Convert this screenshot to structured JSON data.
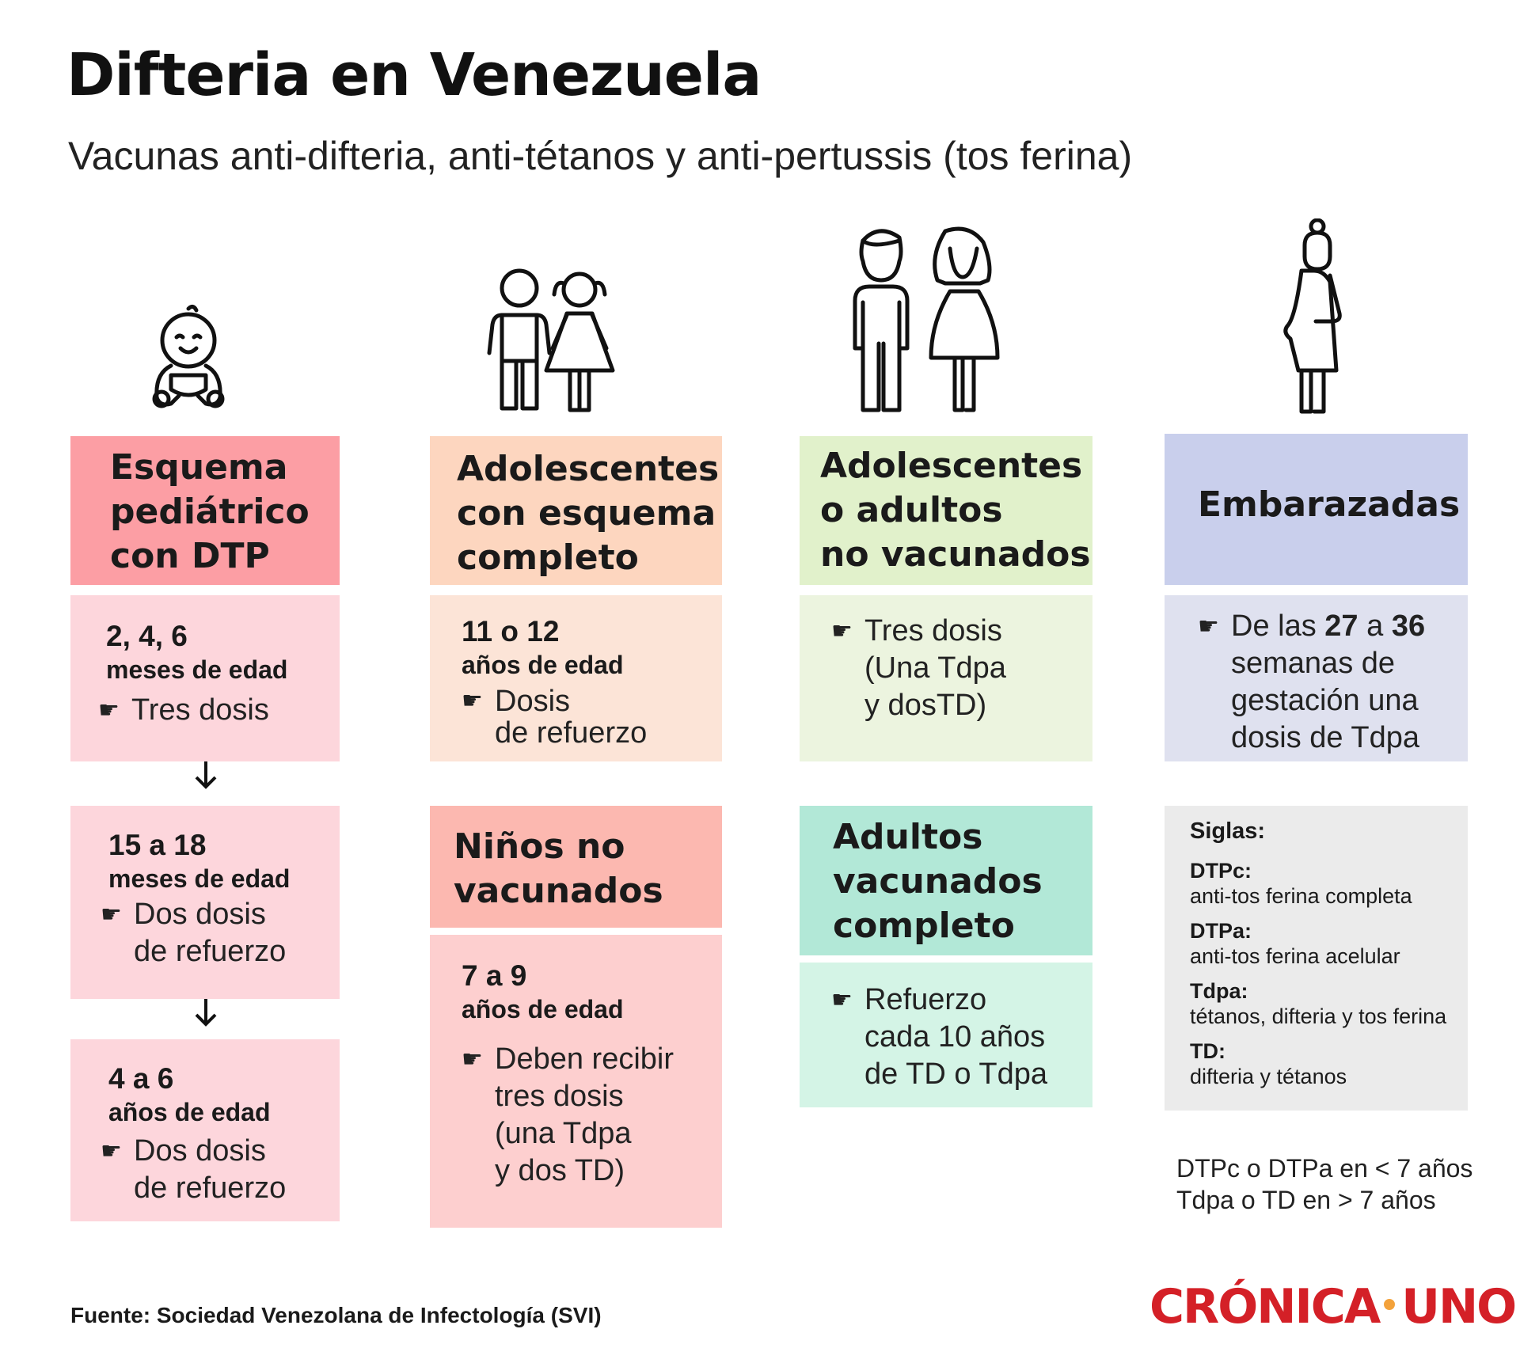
{
  "title": "Difteria en Venezuela",
  "subtitle": "Vacunas anti-difteria, anti-tétanos y anti-pertussis (tos ferina)",
  "icons": [
    "baby-icon",
    "children-icon",
    "adults-icon",
    "pregnant-woman-icon",
    "hand-pointer-icon",
    "arrow-down-icon"
  ],
  "colors": {
    "pediatric_header": "#fc9ea4",
    "pediatric_body": "#fdd6dc",
    "teen_header": "#fdd6bf",
    "teen_body": "#fce4d7",
    "unvax_adults_header": "#e1f1cb",
    "unvax_adults_body": "#ecf4df",
    "pregnant_header": "#c9cfec",
    "pregnant_body": "#dfe1ef",
    "unvax_children_header": "#fcb8b0",
    "unvax_children_body": "#fdcfcf",
    "vax_adults_header": "#b2e8d7",
    "vax_adults_body": "#d4f4e6",
    "siglas_bg": "#ebebeb",
    "brand_red": "#d42027",
    "brand_orange": "#f3a23b"
  },
  "col1": {
    "header": "Esquema\npediátrico\ncon DTP",
    "b1": {
      "num": "2, 4, 6",
      "unit": "meses de edad",
      "bullet": "Tres dosis"
    },
    "b2": {
      "num": "15 a 18",
      "unit": "meses de edad",
      "bullet": "Dos dosis\nde refuerzo"
    },
    "b3": {
      "num": "4 a 6",
      "unit": "años de edad",
      "bullet": "Dos dosis\nde refuerzo"
    }
  },
  "col2": {
    "header": "Adolescentes\ncon esquema\ncompleto",
    "b1": {
      "num": "11 o 12",
      "unit": "años de edad",
      "bullet": "Dosis\nde refuerzo"
    },
    "header2": "Niños no\nvacunados",
    "b2": {
      "num": "7 a 9",
      "unit": "años de edad",
      "bullet": "Deben recibir\ntres dosis\n(una Tdpa\ny dos TD)"
    }
  },
  "col3": {
    "header": "Adolescentes\no adultos\nno vacunados",
    "b1": {
      "bullet": "Tres dosis\n(Una Tdpa\ny dosTD)"
    },
    "header2": "Adultos\nvacunados\ncompleto",
    "b2": {
      "bullet": "Refuerzo\ncada 10 años\nde TD o Tdpa"
    }
  },
  "col4": {
    "header": "Embarazadas",
    "b1": {
      "pre": "De las ",
      "n1": "27",
      "mid": " a ",
      "n2": "36",
      "post": "\nsemanas de\ngestación una\ndosis de Tdpa"
    },
    "siglas": {
      "title": "Siglas:",
      "items": [
        {
          "k": "DTPc:",
          "v": "anti-tos ferina completa"
        },
        {
          "k": "DTPa:",
          "v": "anti-tos ferina acelular"
        },
        {
          "k": "Tdpa:",
          "v": "tétanos, difteria y tos ferina"
        },
        {
          "k": "TD:",
          "v": "difteria y tétanos"
        }
      ]
    },
    "note1": "DTPc o DTPa en < 7 años",
    "note2": "Tdpa o TD en > 7 años"
  },
  "hand_glyph": "☛",
  "source": "Fuente: Sociedad Venezolana de Infectología (SVI)",
  "brand": {
    "left": "CRÓNICA",
    "right": "UNO"
  }
}
